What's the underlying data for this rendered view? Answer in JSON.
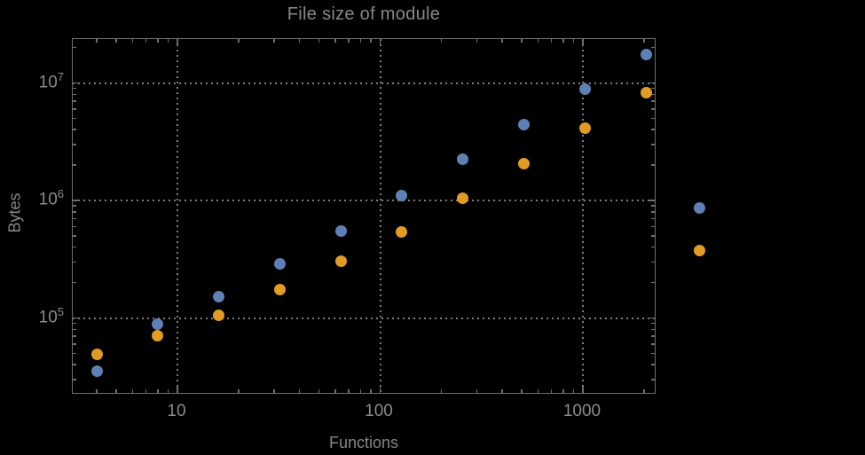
{
  "window": {
    "background": "#000000"
  },
  "chart": {
    "title": "File size of module",
    "xlabel": "Functions",
    "ylabel": "Bytes",
    "x_tick_labels": [
      "10",
      "100",
      "1000"
    ],
    "y_tick_labels": [
      {
        "base": "10",
        "exp": "7"
      },
      {
        "base": "10",
        "exp": "6"
      },
      {
        "base": "10",
        "exp": "5"
      }
    ],
    "frame_color": "#6e6e6e",
    "grid_color": "#7e7e7e",
    "text_color": "#8a8a8a"
  },
  "legend": {
    "markers": [
      {
        "name": "blue-series-marker",
        "color": "#5e81b5"
      },
      {
        "name": "orange-series-marker",
        "color": "#e19c24"
      }
    ]
  },
  "chart_data": {
    "type": "scatter",
    "title": "File size of module",
    "xlabel": "Functions",
    "ylabel": "Bytes",
    "xscale": "log",
    "yscale": "log",
    "xlim": [
      3,
      2400
    ],
    "ylim": [
      22000,
      24000000
    ],
    "x_major_ticks": [
      10,
      100,
      1000
    ],
    "y_major_ticks": [
      100000,
      1000000,
      10000000
    ],
    "grid": "dotted",
    "legend_position": "right-outside",
    "x": [
      4,
      8,
      16,
      32,
      64,
      128,
      256,
      512,
      1024,
      2048
    ],
    "series": [
      {
        "name": "blue",
        "color": "#5e81b5",
        "values": [
          35000,
          88000,
          153000,
          290000,
          550000,
          1100000,
          2250000,
          4450000,
          8800000,
          17500000
        ]
      },
      {
        "name": "orange",
        "color": "#e19c24",
        "values": [
          49000,
          71000,
          106000,
          173000,
          305000,
          540000,
          1040000,
          2050000,
          4150000,
          8300000
        ]
      }
    ]
  }
}
